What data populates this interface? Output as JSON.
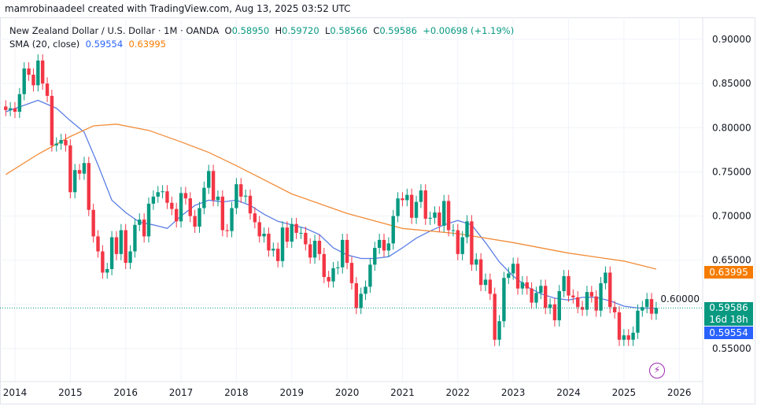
{
  "credit": "mamrobinaadeel created with TradingView.com, Aug 13, 2025 03:52 UTC",
  "legend": {
    "symbol": "New Zealand Dollar / U.S. Dollar · 1M · OANDA",
    "o_label": "O",
    "o": "0.58950",
    "h_label": "H",
    "h": "0.59720",
    "l_label": "L",
    "l": "0.58566",
    "c_label": "C",
    "c": "0.59586",
    "change": "+0.00698 (+1.19%)",
    "sma_title": "SMA (20, close)",
    "sma1": "0.59554",
    "sma2": "0.63995"
  },
  "price_labels": {
    "last": "0.59586",
    "countdown": "16d 18h",
    "sma1": "0.59554",
    "sma2": "0.63995"
  },
  "colors": {
    "up": "#089981",
    "down": "#f23645",
    "sma20": "#5b7ee5",
    "sma100": "#f28c38",
    "sma1_label": "#2962ff",
    "sma2_label": "#f57c00"
  },
  "chart_data": {
    "type": "candlestick",
    "interval": "1M",
    "ylim": [
      0.535,
      0.915
    ],
    "y_ticks": [
      "0.90000",
      "0.85000",
      "0.80000",
      "0.75000",
      "0.70000",
      "0.65000",
      "0.60000",
      "0.55000"
    ],
    "x_ticks": [
      "2014",
      "2015",
      "2016",
      "2017",
      "2018",
      "2019",
      "2020",
      "2021",
      "2022",
      "2023",
      "2024",
      "2025",
      "2026"
    ],
    "start": "2013-11",
    "closes": [
      0.82,
      0.822,
      0.818,
      0.838,
      0.867,
      0.86,
      0.848,
      0.876,
      0.85,
      0.836,
      0.78,
      0.782,
      0.786,
      0.78,
      0.727,
      0.752,
      0.748,
      0.76,
      0.707,
      0.677,
      0.66,
      0.636,
      0.64,
      0.676,
      0.657,
      0.684,
      0.647,
      0.66,
      0.69,
      0.696,
      0.677,
      0.714,
      0.722,
      0.727,
      0.728,
      0.715,
      0.708,
      0.694,
      0.726,
      0.72,
      0.7,
      0.688,
      0.709,
      0.732,
      0.751,
      0.718,
      0.722,
      0.684,
      0.683,
      0.709,
      0.736,
      0.722,
      0.723,
      0.703,
      0.693,
      0.677,
      0.68,
      0.661,
      0.663,
      0.649,
      0.687,
      0.671,
      0.691,
      0.681,
      0.681,
      0.668,
      0.653,
      0.672,
      0.657,
      0.631,
      0.626,
      0.641,
      0.642,
      0.673,
      0.647,
      0.624,
      0.596,
      0.612,
      0.62,
      0.645,
      0.664,
      0.673,
      0.661,
      0.669,
      0.7,
      0.72,
      0.718,
      0.724,
      0.698,
      0.716,
      0.729,
      0.697,
      0.698,
      0.704,
      0.689,
      0.717,
      0.684,
      0.684,
      0.657,
      0.676,
      0.694,
      0.645,
      0.651,
      0.622,
      0.628,
      0.612,
      0.56,
      0.581,
      0.63,
      0.635,
      0.646,
      0.618,
      0.625,
      0.618,
      0.602,
      0.613,
      0.621,
      0.596,
      0.6,
      0.582,
      0.615,
      0.632,
      0.61,
      0.608,
      0.597,
      0.594,
      0.614,
      0.609,
      0.593,
      0.624,
      0.636,
      0.597,
      0.591,
      0.56,
      0.565,
      0.56,
      0.568,
      0.593,
      0.597,
      0.606,
      0.5895,
      0.59586
    ],
    "series": [
      {
        "name": "SMA (20, close)",
        "points": [
          [
            "2013-11",
            0.818
          ],
          [
            "2014-06",
            0.831
          ],
          [
            "2014-10",
            0.822
          ],
          [
            "2015-01",
            0.808
          ],
          [
            "2015-04",
            0.795
          ],
          [
            "2015-07",
            0.758
          ],
          [
            "2015-10",
            0.718
          ],
          [
            "2016-01",
            0.704
          ],
          [
            "2016-04",
            0.693
          ],
          [
            "2016-07",
            0.69
          ],
          [
            "2016-10",
            0.686
          ],
          [
            "2017-01",
            0.7
          ],
          [
            "2017-04",
            0.712
          ],
          [
            "2017-07",
            0.718
          ],
          [
            "2017-10",
            0.716
          ],
          [
            "2018-01",
            0.718
          ],
          [
            "2018-04",
            0.712
          ],
          [
            "2018-07",
            0.702
          ],
          [
            "2018-10",
            0.694
          ],
          [
            "2019-01",
            0.69
          ],
          [
            "2019-04",
            0.686
          ],
          [
            "2019-07",
            0.679
          ],
          [
            "2019-10",
            0.664
          ],
          [
            "2020-01",
            0.656
          ],
          [
            "2020-04",
            0.652
          ],
          [
            "2020-07",
            0.652
          ],
          [
            "2020-10",
            0.654
          ],
          [
            "2021-01",
            0.664
          ],
          [
            "2021-04",
            0.675
          ],
          [
            "2021-07",
            0.683
          ],
          [
            "2021-10",
            0.69
          ],
          [
            "2022-01",
            0.695
          ],
          [
            "2022-04",
            0.69
          ],
          [
            "2022-07",
            0.67
          ],
          [
            "2022-10",
            0.648
          ],
          [
            "2023-01",
            0.632
          ],
          [
            "2023-04",
            0.62
          ],
          [
            "2023-07",
            0.612
          ],
          [
            "2023-10",
            0.607
          ],
          [
            "2024-01",
            0.605
          ],
          [
            "2024-04",
            0.608
          ],
          [
            "2024-07",
            0.608
          ],
          [
            "2024-10",
            0.604
          ],
          [
            "2025-01",
            0.598
          ],
          [
            "2025-04",
            0.596
          ],
          [
            "2025-08",
            0.5955
          ]
        ]
      },
      {
        "name": "SMA",
        "points": [
          [
            "2013-11",
            0.747
          ],
          [
            "2014-06",
            0.77
          ],
          [
            "2015-01",
            0.79
          ],
          [
            "2015-06",
            0.802
          ],
          [
            "2015-11",
            0.804
          ],
          [
            "2016-06",
            0.797
          ],
          [
            "2017-01",
            0.784
          ],
          [
            "2017-07",
            0.772
          ],
          [
            "2018-01",
            0.757
          ],
          [
            "2019-01",
            0.725
          ],
          [
            "2020-01",
            0.703
          ],
          [
            "2021-01",
            0.686
          ],
          [
            "2022-01",
            0.68
          ],
          [
            "2023-01",
            0.67
          ],
          [
            "2024-01",
            0.658
          ],
          [
            "2025-01",
            0.649
          ],
          [
            "2025-08",
            0.64
          ]
        ]
      }
    ]
  }
}
